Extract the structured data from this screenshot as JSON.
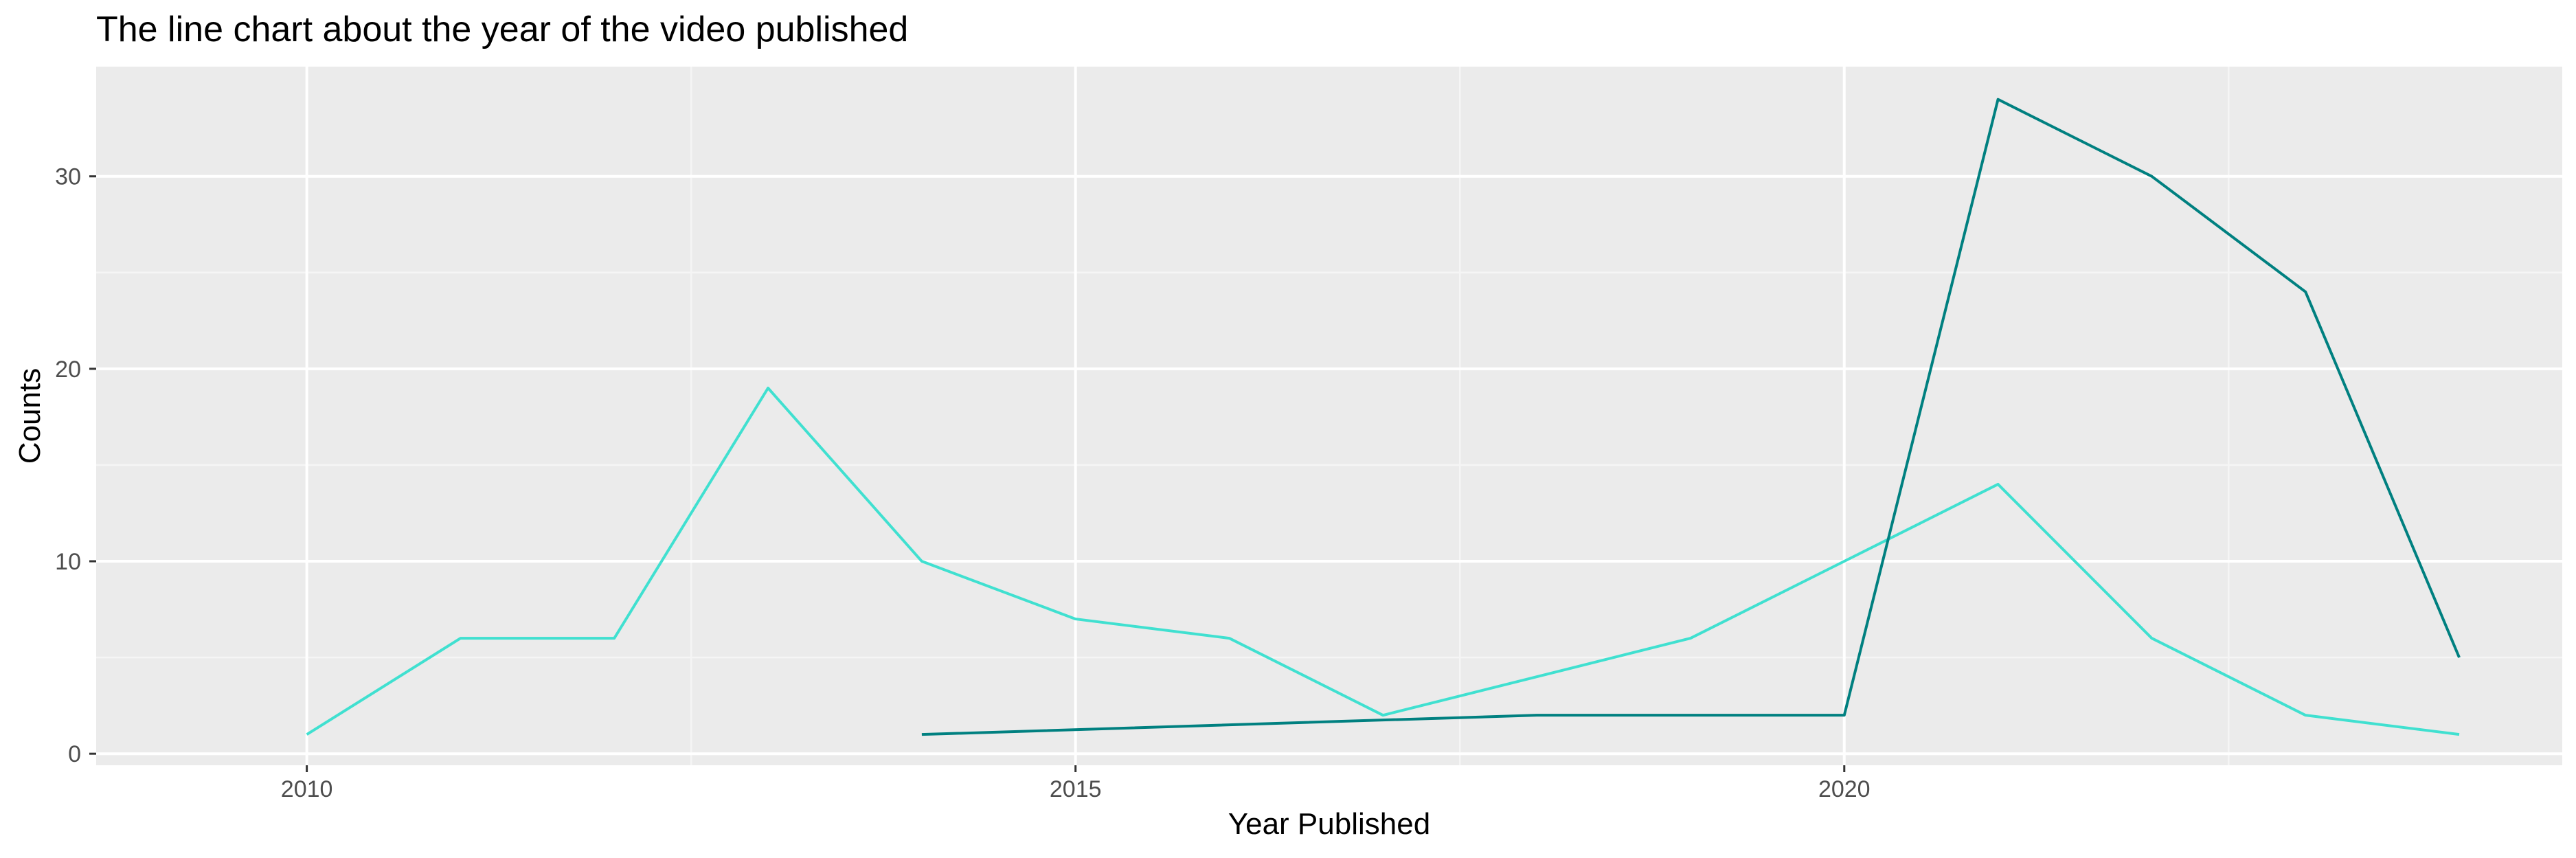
{
  "chart_data": {
    "type": "line",
    "title": "The line chart about the year of the video published",
    "xlabel": "Year Published",
    "ylabel": "Counts",
    "xlim": [
      2008.63,
      2024.67
    ],
    "ylim": [
      -0.6,
      35.7
    ],
    "x_ticks": [
      2010,
      2015,
      2020
    ],
    "y_ticks": [
      0,
      10,
      20,
      30
    ],
    "x_tick_labels": [
      "2010",
      "2015",
      "2020"
    ],
    "y_tick_labels": [
      "0",
      "10",
      "20",
      "30"
    ],
    "grid": true,
    "legend": "none",
    "colors": {
      "panel_background": "#EBEBEB",
      "grid_major": "#FFFFFF",
      "grid_minor": "#F5F5F5",
      "tick_text": "#4D4D4D"
    },
    "series": [
      {
        "color": "#40E0D0",
        "points": [
          {
            "x": 2010,
            "y": 1
          },
          {
            "x": 2011,
            "y": 6
          },
          {
            "x": 2012,
            "y": 6
          },
          {
            "x": 2013,
            "y": 19
          },
          {
            "x": 2014,
            "y": 10
          },
          {
            "x": 2015,
            "y": 7
          },
          {
            "x": 2016,
            "y": 6
          },
          {
            "x": 2017,
            "y": 2
          },
          {
            "x": 2019,
            "y": 6
          },
          {
            "x": 2021,
            "y": 14
          },
          {
            "x": 2022,
            "y": 6
          },
          {
            "x": 2023,
            "y": 2
          },
          {
            "x": 2024,
            "y": 1
          }
        ]
      },
      {
        "color": "#008080",
        "points": [
          {
            "x": 2014,
            "y": 1
          },
          {
            "x": 2018,
            "y": 2
          },
          {
            "x": 2020,
            "y": 2
          },
          {
            "x": 2021,
            "y": 34
          },
          {
            "x": 2022,
            "y": 30
          },
          {
            "x": 2023,
            "y": 24
          },
          {
            "x": 2024,
            "y": 5
          }
        ]
      }
    ]
  }
}
